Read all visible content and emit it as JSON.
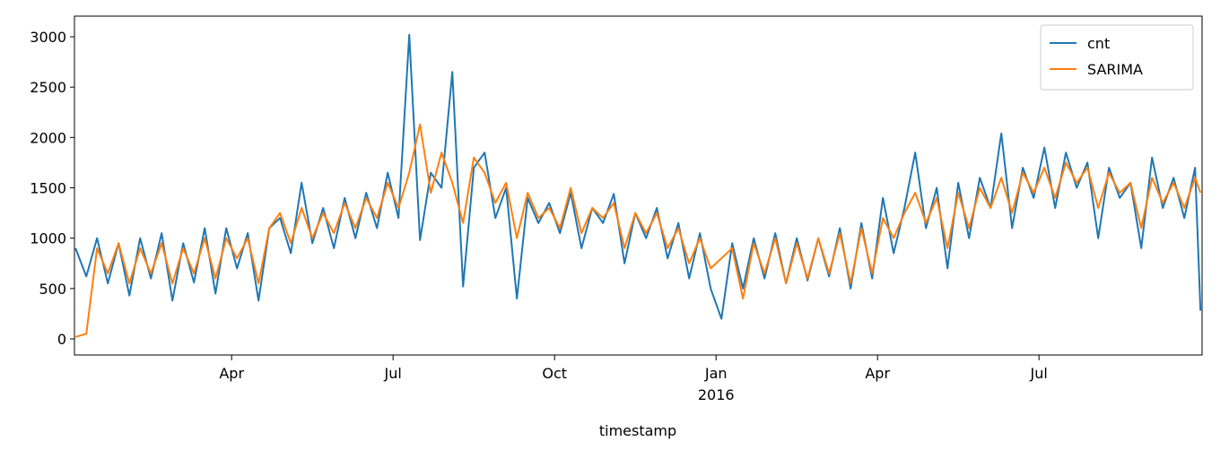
{
  "chart_data": {
    "type": "line",
    "xlabel": "timestamp",
    "x": [
      0.1,
      0.3,
      0.5,
      0.7,
      0.9,
      1.1,
      1.3,
      1.5,
      1.7,
      1.9,
      2.1,
      2.3,
      2.5,
      2.7,
      2.9,
      3.1,
      3.3,
      3.5,
      3.7,
      3.9,
      4.1,
      4.3,
      4.5,
      4.7,
      4.9,
      5.1,
      5.3,
      5.5,
      5.7,
      5.9,
      6.1,
      6.3,
      6.5,
      6.7,
      6.9,
      7.1,
      7.3,
      7.5,
      7.7,
      7.9,
      8.1,
      8.3,
      8.5,
      8.7,
      8.9,
      9.1,
      9.3,
      9.5,
      9.7,
      9.9,
      10.1,
      10.3,
      10.5,
      10.7,
      10.9,
      11.1,
      11.3,
      11.5,
      11.7,
      11.9,
      12.1,
      12.3,
      12.5,
      12.7,
      12.9,
      13.1,
      13.3,
      13.5,
      13.7,
      13.9,
      14.1,
      14.3,
      14.5,
      14.7,
      14.9,
      15.1,
      15.3,
      15.5,
      15.7,
      15.9,
      16.1,
      16.3,
      16.5,
      16.7,
      16.9,
      17.1,
      17.3,
      17.5,
      17.7,
      17.9,
      18.1,
      18.3,
      18.5,
      18.7,
      18.9,
      19.1,
      19.3,
      19.5,
      19.7,
      19.9,
      20.1,
      20.3,
      20.5,
      20.7,
      20.9,
      21.0
    ],
    "series": [
      {
        "name": "cnt",
        "color": "#1f77b4",
        "values": [
          900,
          620,
          1000,
          550,
          950,
          430,
          1000,
          600,
          1050,
          380,
          950,
          560,
          1100,
          450,
          1100,
          700,
          1050,
          380,
          1100,
          1200,
          850,
          1550,
          950,
          1300,
          900,
          1400,
          1000,
          1450,
          1100,
          1650,
          1200,
          3020,
          980,
          1650,
          1500,
          2650,
          520,
          1700,
          1850,
          1200,
          1500,
          400,
          1400,
          1150,
          1350,
          1050,
          1450,
          900,
          1300,
          1150,
          1440,
          750,
          1250,
          1000,
          1300,
          800,
          1150,
          600,
          1050,
          500,
          200,
          950,
          500,
          1000,
          600,
          1050,
          550,
          1000,
          580,
          1000,
          620,
          1100,
          500,
          1150,
          600,
          1400,
          850,
          1300,
          1850,
          1100,
          1500,
          700,
          1550,
          1000,
          1600,
          1300,
          2040,
          1100,
          1700,
          1400,
          1900,
          1300,
          1850,
          1500,
          1750,
          1000,
          1700,
          1400,
          1550,
          900,
          1800,
          1300,
          1600,
          1200,
          1700,
          280
        ]
      },
      {
        "name": "SARIMA",
        "color": "#ff7f0e",
        "values": [
          20,
          50,
          900,
          650,
          950,
          550,
          900,
          650,
          950,
          550,
          900,
          650,
          1000,
          600,
          1000,
          800,
          1000,
          550,
          1100,
          1250,
          950,
          1300,
          1000,
          1250,
          1050,
          1350,
          1100,
          1400,
          1200,
          1550,
          1300,
          1650,
          2130,
          1450,
          1850,
          1550,
          1150,
          1800,
          1650,
          1350,
          1550,
          1000,
          1450,
          1200,
          1300,
          1100,
          1500,
          1050,
          1300,
          1200,
          1350,
          900,
          1250,
          1050,
          1250,
          900,
          1100,
          750,
          1000,
          700,
          800,
          900,
          400,
          950,
          650,
          1000,
          550,
          950,
          600,
          1000,
          650,
          1050,
          550,
          1100,
          650,
          1200,
          1000,
          1250,
          1450,
          1150,
          1400,
          900,
          1450,
          1100,
          1500,
          1300,
          1600,
          1250,
          1650,
          1450,
          1700,
          1400,
          1750,
          1550,
          1700,
          1300,
          1650,
          1450,
          1550,
          1100,
          1600,
          1350,
          1550,
          1300,
          1600,
          1450
        ]
      }
    ],
    "xlim": [
      0.08,
      21.03
    ],
    "xticks": [
      {
        "value": 3,
        "label": "Apr"
      },
      {
        "value": 6,
        "label": "Jul"
      },
      {
        "value": 9,
        "label": "Oct"
      },
      {
        "value": 12,
        "label": "Jan\n2016"
      },
      {
        "value": 15,
        "label": "Apr"
      },
      {
        "value": 18,
        "label": "Jul"
      }
    ],
    "ylim": [
      -160,
      3205
    ],
    "yticks": [
      0,
      500,
      1000,
      1500,
      2000,
      2500,
      3000
    ],
    "legend": "upper right"
  }
}
